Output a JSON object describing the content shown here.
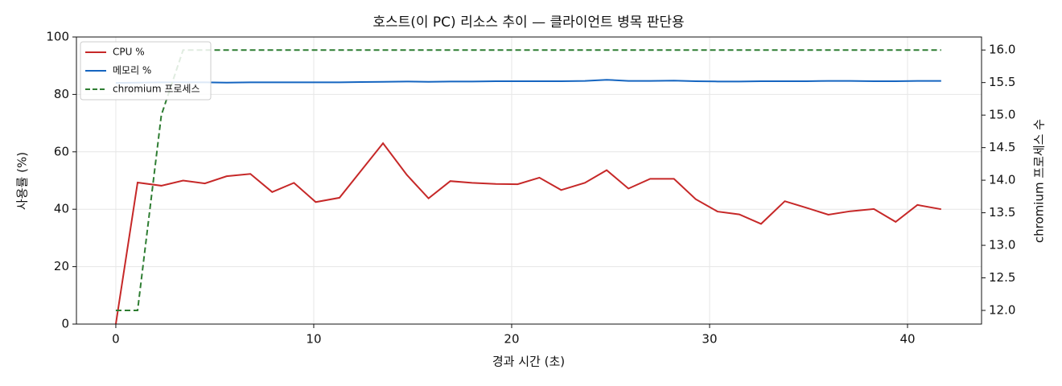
{
  "chart_data": {
    "type": "line",
    "title": "호스트(이 PC) 리소스 추이 — 클라이언트 병목 판단용",
    "x_label": "경과 시간 (초)",
    "y_label": "사용률 (%)",
    "y2_label": "chromium 프로세스 수",
    "x": [
      0,
      1.1,
      2.3,
      3.4,
      4.5,
      5.6,
      6.8,
      7.9,
      9.0,
      10.1,
      11.3,
      12.4,
      13.5,
      14.7,
      15.8,
      16.9,
      18.0,
      19.2,
      20.3,
      21.4,
      22.5,
      23.7,
      24.8,
      25.9,
      27.0,
      28.2,
      29.3,
      30.4,
      31.5,
      32.6,
      33.8,
      34.9,
      36.0,
      37.1,
      38.3,
      39.4,
      40.5,
      41.7
    ],
    "series": [
      {
        "name": "CPU %",
        "color": "#c62828",
        "linestyle": "solid",
        "values": [
          0,
          49.3,
          48.2,
          50,
          49,
          51.5,
          52.3,
          46,
          49.2,
          42.5,
          44,
          53.5,
          63,
          52,
          43.8,
          49.8,
          49.2,
          48.8,
          48.7,
          51,
          46.7,
          49.2,
          53.6,
          47.2,
          50.6,
          50.6,
          43.5,
          39.2,
          38.2,
          34.9,
          42.8,
          40.5,
          38.1,
          39.3,
          40.1,
          35.6,
          41.5,
          40
        ]
      },
      {
        "name": "메모리 %",
        "color": "#1565c0",
        "linestyle": "solid",
        "values": [
          84.0,
          84.1,
          84.2,
          84.2,
          84.2,
          84.1,
          84.2,
          84.2,
          84.2,
          84.2,
          84.2,
          84.3,
          84.4,
          84.5,
          84.4,
          84.5,
          84.5,
          84.6,
          84.6,
          84.6,
          84.6,
          84.7,
          85.1,
          84.7,
          84.7,
          84.8,
          84.6,
          84.5,
          84.5,
          84.6,
          84.6,
          84.6,
          84.7,
          84.7,
          84.6,
          84.6,
          84.7,
          84.7
        ]
      },
      {
        "name": "chromium 프로세스",
        "color": "#2e7d32",
        "linestyle": "dashed",
        "axis": "y2",
        "values": [
          12,
          12,
          15,
          16,
          16,
          16,
          16,
          16,
          16,
          16,
          16,
          16,
          16,
          16,
          16,
          16,
          16,
          16,
          16,
          16,
          16,
          16,
          16,
          16,
          16,
          16,
          16,
          16,
          16,
          16,
          16,
          16,
          16,
          16,
          16,
          16,
          16,
          16
        ]
      }
    ],
    "xlim": [
      -1.99,
      43.74
    ],
    "xticks": [
      0,
      10,
      20,
      30,
      40
    ],
    "ylim": [
      0,
      100
    ],
    "yticks": [
      0,
      20,
      40,
      60,
      80,
      100
    ],
    "y2lim": [
      11.79,
      16.2
    ],
    "y2ticks": [
      {
        "value": 12,
        "label": "12.0"
      },
      12.5,
      {
        "value": 13,
        "label": "13.0"
      },
      13.5,
      {
        "value": 14,
        "label": "14.0"
      },
      14.5,
      {
        "value": 15,
        "label": "15.0"
      },
      15.5,
      {
        "value": 16,
        "label": "16.0"
      }
    ],
    "grid": true,
    "legend": "upper-left"
  }
}
